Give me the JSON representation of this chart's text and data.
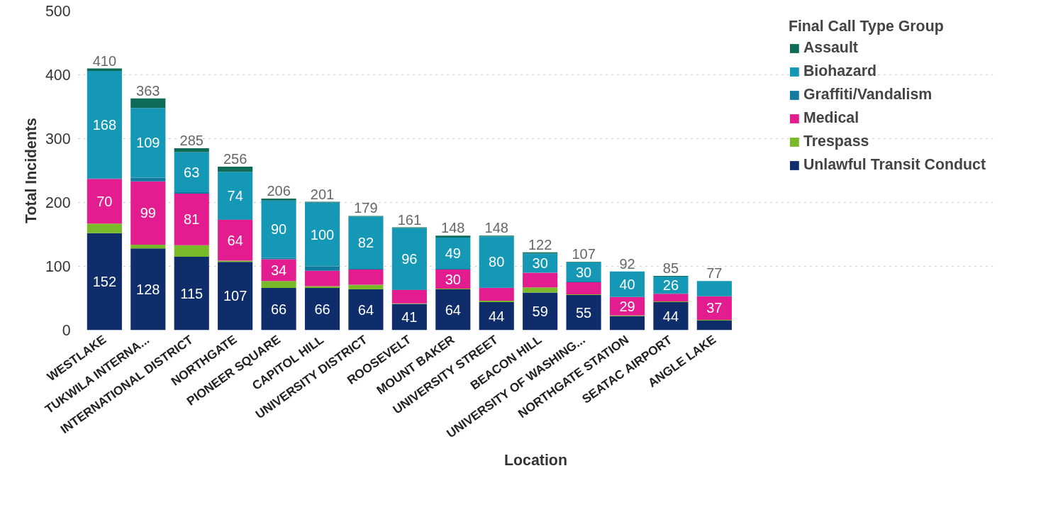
{
  "chart_data": {
    "type": "bar",
    "stacked": true,
    "xlabel": "Location",
    "ylabel": "Total Incidents",
    "legend_title": "Final Call Type Group",
    "legend": "right",
    "grid": "y",
    "categories": [
      "WESTLAKE",
      "TUKWILA INTERNA...",
      "INTERNATIONAL DISTRICT",
      "NORTHGATE",
      "PIONEER SQUARE",
      "CAPITOL HILL",
      "UNIVERSITY DISTRICT",
      "ROOSEVELT",
      "MOUNT BAKER",
      "UNIVERSITY STREET",
      "BEACON HILL",
      "UNIVERSITY OF WASHING...",
      "NORTHGATE STATION",
      "SEATAC AIRPORT",
      "ANGLE LAKE"
    ],
    "ylim": [
      0,
      500
    ],
    "yticks": [
      0,
      100,
      200,
      300,
      400,
      500
    ],
    "series": [
      {
        "name": "Unlawful Transit Conduct",
        "color": "#0f2d6b",
        "values": [
          152,
          128,
          115,
          107,
          66,
          66,
          64,
          41,
          64,
          44,
          59,
          55,
          22,
          44,
          15
        ],
        "value_labels": [
          "152",
          "128",
          "115",
          "107",
          "66",
          "66",
          "64",
          "41",
          "64",
          "44",
          "59",
          "55",
          null,
          "44",
          null
        ]
      },
      {
        "name": "Trespass",
        "color": "#7ab929",
        "values": [
          15,
          6,
          18,
          2,
          11,
          3,
          7,
          1,
          1,
          2,
          8,
          1,
          1,
          1,
          1
        ],
        "value_labels": [
          null,
          null,
          null,
          null,
          null,
          null,
          null,
          null,
          null,
          null,
          null,
          null,
          null,
          null,
          null
        ]
      },
      {
        "name": "Medical",
        "color": "#e31c8f",
        "values": [
          70,
          99,
          81,
          64,
          34,
          24,
          24,
          21,
          30,
          20,
          23,
          19,
          29,
          12,
          37
        ],
        "value_labels": [
          "70",
          "99",
          "81",
          "64",
          "34",
          null,
          null,
          null,
          "30",
          null,
          null,
          null,
          "29",
          null,
          "37"
        ]
      },
      {
        "name": "Graffiti/Vandalism",
        "color": "#127a9e",
        "values": [
          1,
          6,
          2,
          1,
          2,
          7,
          1,
          1,
          1,
          1,
          0,
          1,
          0,
          1,
          0
        ],
        "value_labels": [
          null,
          null,
          null,
          null,
          null,
          null,
          null,
          null,
          null,
          null,
          null,
          null,
          null,
          null,
          null
        ]
      },
      {
        "name": "Biohazard",
        "color": "#1498b6",
        "values": [
          168,
          109,
          63,
          74,
          90,
          100,
          82,
          96,
          49,
          80,
          30,
          30,
          40,
          26,
          24
        ],
        "value_labels": [
          "168",
          "109",
          "63",
          "74",
          "90",
          "100",
          "82",
          "96",
          "49",
          "80",
          "30",
          "30",
          "40",
          "26",
          null
        ]
      },
      {
        "name": "Assault",
        "color": "#0d6b57",
        "values": [
          4,
          15,
          6,
          8,
          3,
          1,
          1,
          1,
          3,
          1,
          2,
          1,
          0,
          1,
          0
        ],
        "value_labels": [
          null,
          null,
          null,
          null,
          null,
          null,
          null,
          null,
          null,
          null,
          null,
          null,
          null,
          null,
          null
        ]
      }
    ],
    "totals": [
      "410",
      "363",
      "285",
      "256",
      "206",
      "201",
      "179",
      "161",
      "148",
      "148",
      "122",
      "107",
      "92",
      "85",
      "77"
    ]
  }
}
